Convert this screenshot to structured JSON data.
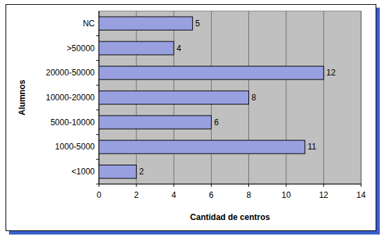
{
  "chart_data": {
    "type": "bar",
    "orientation": "horizontal",
    "xlabel": "Cantidad de centros",
    "ylabel": "Alumnos",
    "categories": [
      "<1000",
      "1000-5000",
      "5000-10000",
      "10000-20000",
      "20000-50000",
      ">50000",
      "NC"
    ],
    "values": [
      2,
      11,
      6,
      8,
      12,
      4,
      5
    ],
    "color": "#98a0e0",
    "xlim": [
      0,
      14
    ],
    "xticks": [
      0,
      2,
      4,
      6,
      8,
      10,
      12,
      14
    ],
    "grid": true,
    "data_labels": true
  }
}
